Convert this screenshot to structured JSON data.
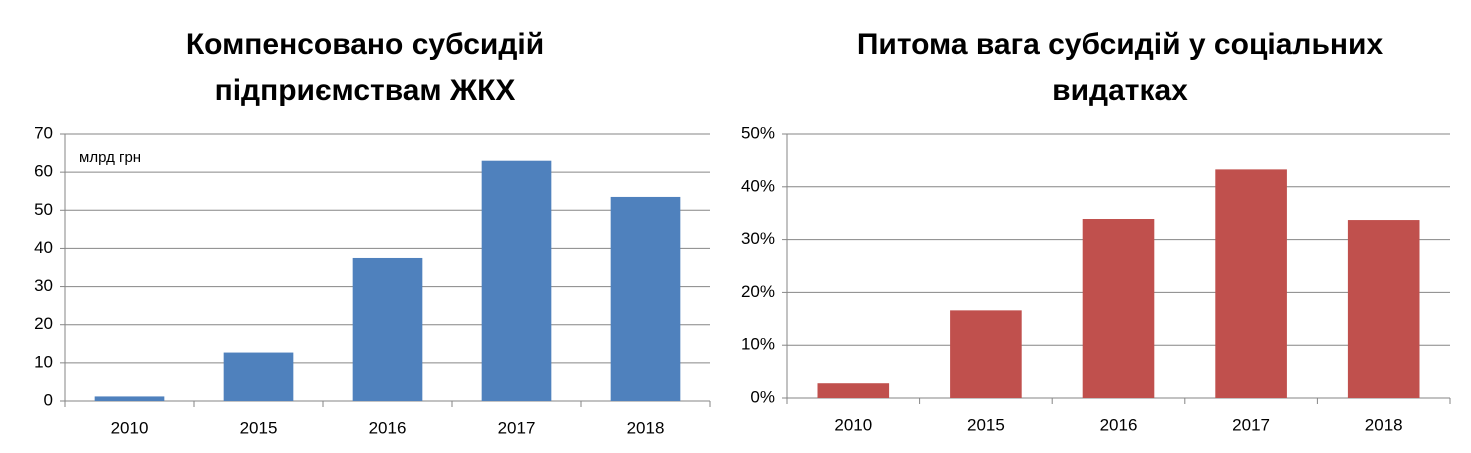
{
  "chart_data": [
    {
      "type": "bar",
      "title": "Компенсовано субсидій підприємствам ЖКХ",
      "annotation": "млрд грн",
      "categories": [
        "2010",
        "2015",
        "2016",
        "2017",
        "2018"
      ],
      "values": [
        1.2,
        12.7,
        37.5,
        63,
        53.5
      ],
      "color": "#4f81bd",
      "ylim": [
        0,
        70
      ],
      "yticks": [
        0,
        10,
        20,
        30,
        40,
        50,
        60,
        70
      ],
      "grid": true
    },
    {
      "type": "bar",
      "title": "Питома вага субсидій у соціальних видатках",
      "categories": [
        "2010",
        "2015",
        "2016",
        "2017",
        "2018"
      ],
      "values": [
        2.8,
        16.6,
        33.9,
        43.3,
        33.7
      ],
      "color": "#c0504d",
      "ylim": [
        0,
        50
      ],
      "yticks": [
        {
          "value": 0,
          "label": "0%"
        },
        {
          "value": 10,
          "label": "10%"
        },
        {
          "value": 20,
          "label": "20%"
        },
        {
          "value": 30,
          "label": "30%"
        },
        {
          "value": 40,
          "label": "40%"
        },
        {
          "value": 50,
          "label": "50%"
        }
      ],
      "grid": true
    }
  ]
}
